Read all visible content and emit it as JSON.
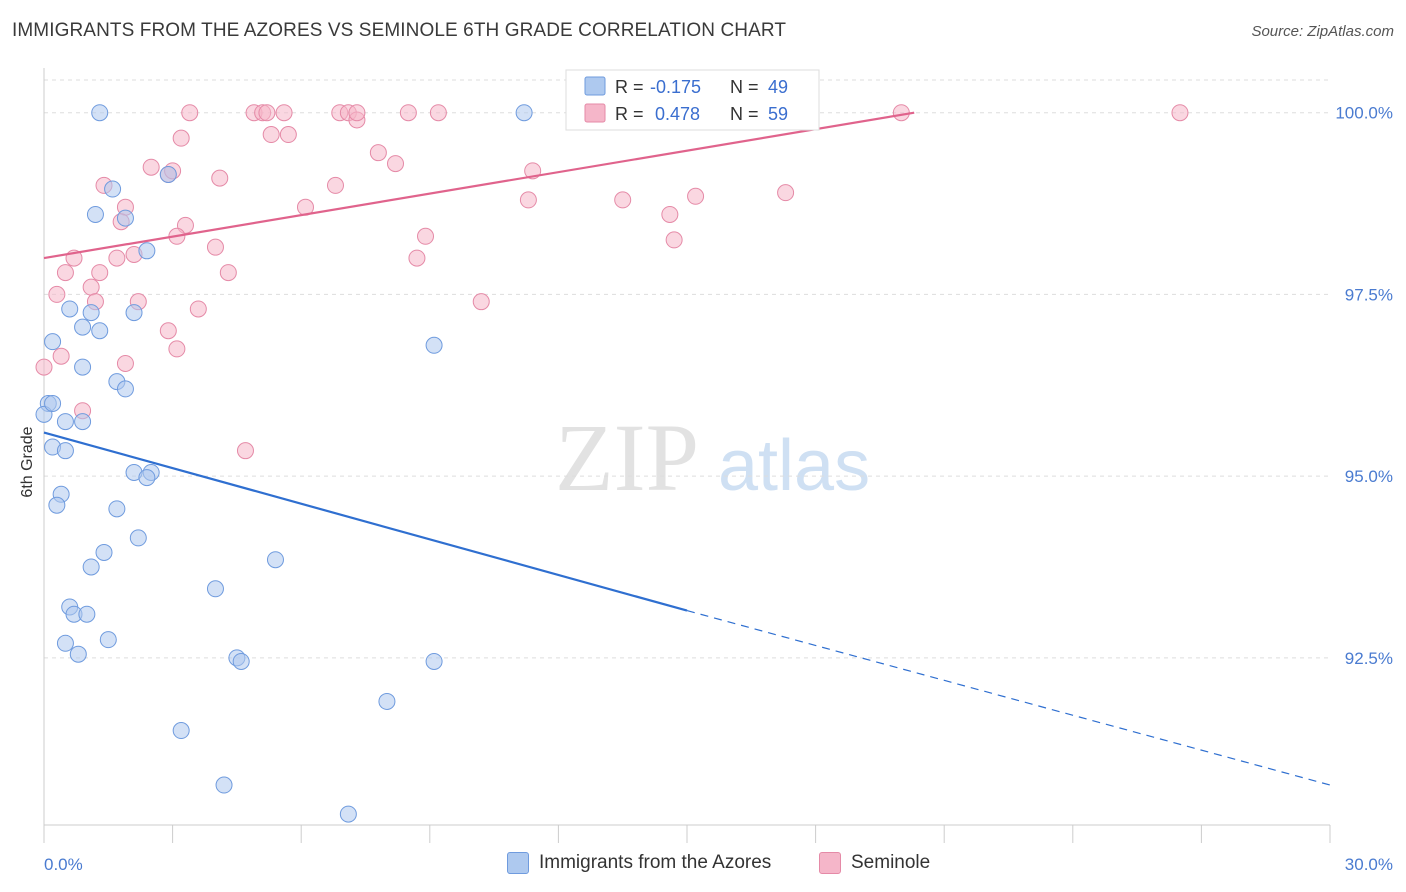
{
  "title": "IMMIGRANTS FROM THE AZORES VS SEMINOLE 6TH GRADE CORRELATION CHART",
  "source": "Source: ZipAtlas.com",
  "watermark": {
    "zip": "ZIP",
    "atlas": "atlas"
  },
  "colors": {
    "blue_fill": "#aec9ef",
    "blue_stroke": "#6f9bde",
    "blue_line": "#2f6fd0",
    "pink_fill": "#f5b6c9",
    "pink_stroke": "#e58aa7",
    "pink_line": "#e0638c",
    "axis_text": "#4a7bd0",
    "grid": "#dddddd"
  },
  "legend": {
    "rows": [
      {
        "r_label": "R =",
        "r_value": "-0.175",
        "n_label": "N =",
        "n_value": "49",
        "series": "blue"
      },
      {
        "r_label": "R =",
        "r_value": "0.478",
        "n_label": "N =",
        "n_value": "59",
        "series": "pink"
      }
    ]
  },
  "bottom_legend": [
    {
      "label": "Immigrants from the Azores",
      "series": "blue"
    },
    {
      "label": "Seminole",
      "series": "pink"
    }
  ],
  "chart_data": {
    "type": "scatter",
    "title": "IMMIGRANTS FROM THE AZORES VS SEMINOLE 6TH GRADE CORRELATION CHART",
    "xlabel": "",
    "ylabel": "6th Grade",
    "xlim": [
      0,
      30
    ],
    "ylim": [
      90.2,
      100.45
    ],
    "x_tick_labels": [
      "0.0%",
      "30.0%"
    ],
    "y_ticks": [
      100.0,
      97.5,
      95.0,
      92.5
    ],
    "y_tick_labels": [
      "100.0%",
      "97.5%",
      "95.0%",
      "92.5%"
    ],
    "grid": true,
    "legend_position": "top-center",
    "series": [
      {
        "name": "Immigrants from the Azores",
        "color": "#aec9ef",
        "trend": {
          "x0": 0.0,
          "y0": 95.6,
          "x1": 15.0,
          "y1": 93.15,
          "dash_to_x": 30.0,
          "dash_to_y": 90.75
        },
        "points": [
          [
            1.3,
            100.0
          ],
          [
            11.2,
            100.0
          ],
          [
            15.5,
            100.0
          ],
          [
            2.9,
            99.15
          ],
          [
            1.6,
            98.95
          ],
          [
            1.2,
            98.6
          ],
          [
            1.9,
            98.55
          ],
          [
            2.4,
            98.1
          ],
          [
            0.6,
            97.3
          ],
          [
            1.1,
            97.25
          ],
          [
            2.1,
            97.25
          ],
          [
            0.9,
            97.05
          ],
          [
            1.3,
            97.0
          ],
          [
            0.2,
            96.85
          ],
          [
            9.1,
            96.8
          ],
          [
            0.9,
            96.5
          ],
          [
            1.7,
            96.3
          ],
          [
            1.9,
            96.2
          ],
          [
            0.1,
            96.0
          ],
          [
            0.0,
            95.85
          ],
          [
            0.5,
            95.75
          ],
          [
            0.9,
            95.75
          ],
          [
            0.2,
            95.4
          ],
          [
            0.5,
            95.35
          ],
          [
            2.1,
            95.05
          ],
          [
            2.5,
            95.05
          ],
          [
            2.4,
            94.98
          ],
          [
            0.4,
            94.75
          ],
          [
            0.3,
            94.6
          ],
          [
            1.7,
            94.55
          ],
          [
            2.2,
            94.15
          ],
          [
            1.4,
            93.95
          ],
          [
            1.1,
            93.75
          ],
          [
            5.4,
            93.85
          ],
          [
            4.0,
            93.45
          ],
          [
            0.6,
            93.2
          ],
          [
            0.7,
            93.1
          ],
          [
            1.0,
            93.1
          ],
          [
            1.5,
            92.75
          ],
          [
            0.5,
            92.7
          ],
          [
            0.8,
            92.55
          ],
          [
            4.5,
            92.5
          ],
          [
            4.6,
            92.45
          ],
          [
            9.1,
            92.45
          ],
          [
            8.0,
            91.9
          ],
          [
            3.2,
            91.5
          ],
          [
            4.2,
            90.75
          ],
          [
            7.1,
            90.35
          ],
          [
            0.2,
            96.0
          ]
        ]
      },
      {
        "name": "Seminole",
        "color": "#f5b6c9",
        "trend": {
          "x0": 0.0,
          "y0": 98.0,
          "x1": 20.3,
          "y1": 100.0
        },
        "points": [
          [
            3.4,
            100.0
          ],
          [
            4.9,
            100.0
          ],
          [
            5.1,
            100.0
          ],
          [
            5.6,
            100.0
          ],
          [
            6.9,
            100.0
          ],
          [
            7.1,
            100.0
          ],
          [
            8.5,
            100.0
          ],
          [
            9.2,
            100.0
          ],
          [
            14.8,
            100.0
          ],
          [
            20.0,
            100.0
          ],
          [
            26.5,
            100.0
          ],
          [
            5.3,
            99.7
          ],
          [
            3.2,
            99.65
          ],
          [
            5.7,
            99.7
          ],
          [
            7.3,
            99.9
          ],
          [
            7.8,
            99.45
          ],
          [
            8.2,
            99.3
          ],
          [
            2.5,
            99.25
          ],
          [
            2.9,
            99.15
          ],
          [
            3.0,
            99.2
          ],
          [
            4.1,
            99.1
          ],
          [
            1.4,
            99.0
          ],
          [
            6.8,
            99.0
          ],
          [
            11.4,
            99.2
          ],
          [
            11.3,
            98.8
          ],
          [
            13.5,
            98.8
          ],
          [
            15.2,
            98.85
          ],
          [
            17.3,
            98.9
          ],
          [
            6.1,
            98.7
          ],
          [
            1.9,
            98.7
          ],
          [
            1.8,
            98.5
          ],
          [
            3.3,
            98.45
          ],
          [
            3.1,
            98.3
          ],
          [
            14.6,
            98.6
          ],
          [
            14.7,
            98.25
          ],
          [
            8.9,
            98.3
          ],
          [
            4.0,
            98.15
          ],
          [
            0.7,
            98.0
          ],
          [
            1.7,
            98.0
          ],
          [
            2.1,
            98.05
          ],
          [
            8.7,
            98.0
          ],
          [
            0.5,
            97.8
          ],
          [
            1.3,
            97.8
          ],
          [
            4.3,
            97.8
          ],
          [
            1.1,
            97.6
          ],
          [
            0.3,
            97.5
          ],
          [
            2.2,
            97.4
          ],
          [
            10.2,
            97.4
          ],
          [
            1.2,
            97.4
          ],
          [
            3.6,
            97.3
          ],
          [
            2.9,
            97.0
          ],
          [
            3.1,
            96.75
          ],
          [
            0.4,
            96.65
          ],
          [
            1.9,
            96.55
          ],
          [
            0.0,
            96.5
          ],
          [
            0.9,
            95.9
          ],
          [
            4.7,
            95.35
          ],
          [
            7.3,
            100.0
          ],
          [
            5.2,
            100.0
          ]
        ]
      }
    ]
  }
}
